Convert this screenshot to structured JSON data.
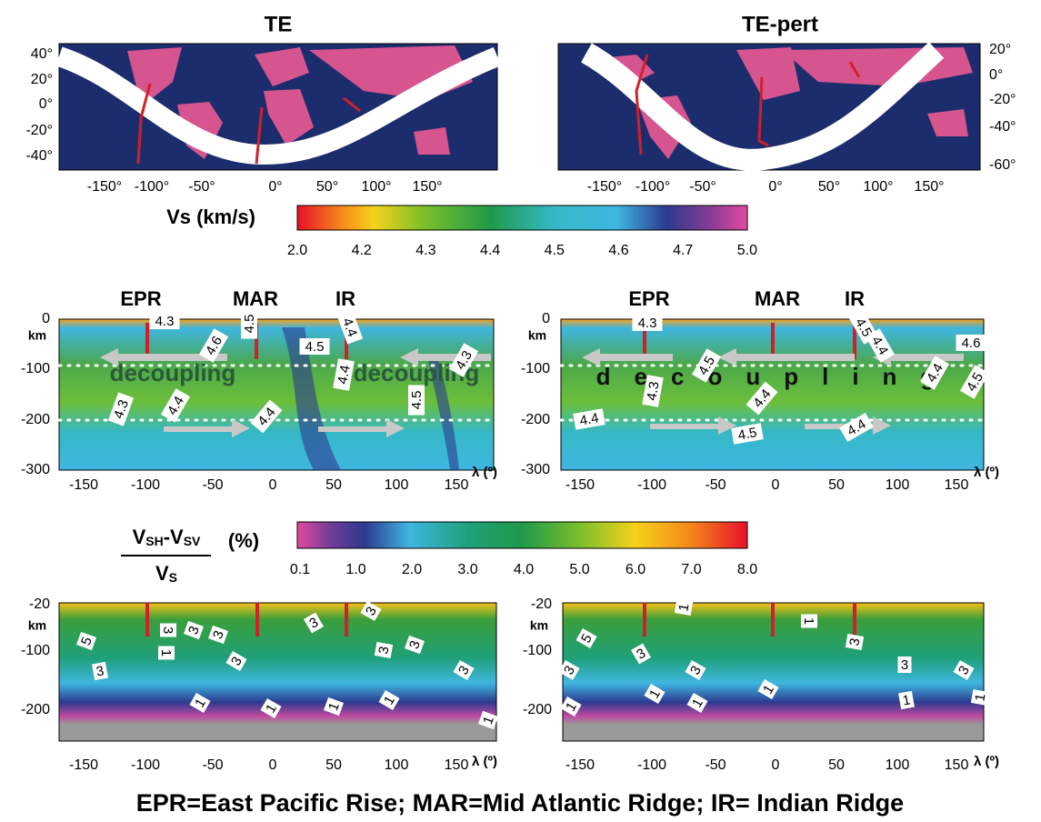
{
  "maps": [
    {
      "title": "TE",
      "lat_ticks": [
        "40°",
        "20°",
        "0°",
        "-20°",
        "-40°"
      ],
      "lon_ticks": [
        "-150°",
        "-100°",
        "-50°",
        "0°",
        "50°",
        "100°",
        "150°"
      ]
    },
    {
      "title": "TE-pert",
      "lat_ticks": [
        "20°",
        "0°",
        "-20°",
        "-40°",
        "-60°"
      ],
      "lon_ticks": [
        "-150°",
        "-100°",
        "-50°",
        "0°",
        "50°",
        "100°",
        "150°"
      ]
    }
  ],
  "vs_colorbar": {
    "label": "Vs (km/s)",
    "ticks": [
      "2.0",
      "4.2",
      "4.3",
      "4.4",
      "4.5",
      "4.6",
      "4.7",
      "5.0"
    ]
  },
  "vs_sections": [
    {
      "ridges": [
        "EPR",
        "MAR",
        "IR"
      ],
      "depth_ticks": [
        "0",
        "-100",
        "-200",
        "-300"
      ],
      "depth_unit": "km",
      "lon_ticks": [
        "-150",
        "-100",
        "-50",
        "0",
        "50",
        "100",
        "150"
      ],
      "lon_label": "λ (º)",
      "annotation": "decoupling",
      "contour_labels": [
        "4.3",
        "4.6",
        "4.5",
        "4.5",
        "4.4",
        "4.4",
        "4.3",
        "4.3",
        "4.4",
        "4.4",
        "4.5"
      ]
    },
    {
      "ridges": [
        "EPR",
        "MAR",
        "IR"
      ],
      "depth_ticks": [
        "0",
        "-100",
        "-200",
        "-300"
      ],
      "depth_unit": "km",
      "lon_ticks": [
        "-150",
        "-100",
        "-50",
        "0",
        "50",
        "100",
        "150"
      ],
      "lon_label": "λ (º)",
      "annotation": "decoupling",
      "contour_labels": [
        "4.3",
        "4.5",
        "4.4",
        "4.6",
        "4.5",
        "4.3",
        "4.4",
        "4.4",
        "4.5",
        "4.4",
        "4.5",
        "4.4"
      ]
    }
  ],
  "aniso_colorbar": {
    "label_parts": [
      "V",
      "SH",
      "-V",
      "SV",
      "V",
      "S"
    ],
    "unit": "(%)",
    "ticks": [
      "0.1",
      "1.0",
      "2.0",
      "3.0",
      "4.0",
      "5.0",
      "6.0",
      "7.0",
      "8.0"
    ]
  },
  "aniso_sections": [
    {
      "depth_ticks": [
        "-20",
        "-100",
        "-200"
      ],
      "depth_unit": "km",
      "lon_ticks": [
        "-150",
        "-100",
        "-50",
        "0",
        "50",
        "100",
        "150"
      ],
      "lon_label": "λ (º)",
      "contour_labels": [
        "5",
        "3",
        "3",
        "3",
        "3",
        "3",
        "3",
        "3",
        "3",
        "3",
        "3",
        "1",
        "1",
        "1",
        "1",
        "1",
        "1"
      ]
    },
    {
      "depth_ticks": [
        "-20",
        "-100",
        "-200"
      ],
      "depth_unit": "km",
      "lon_ticks": [
        "-150",
        "-100",
        "-50",
        "0",
        "50",
        "100",
        "150"
      ],
      "lon_label": "λ (º)",
      "contour_labels": [
        "5",
        "3",
        "3",
        "3",
        "1",
        "1",
        "3",
        "3",
        "3",
        "1",
        "1",
        "1",
        "1",
        "1",
        "1"
      ]
    }
  ],
  "caption": "EPR=East Pacific Rise; MAR=Mid Atlantic Ridge; IR= Indian Ridge"
}
